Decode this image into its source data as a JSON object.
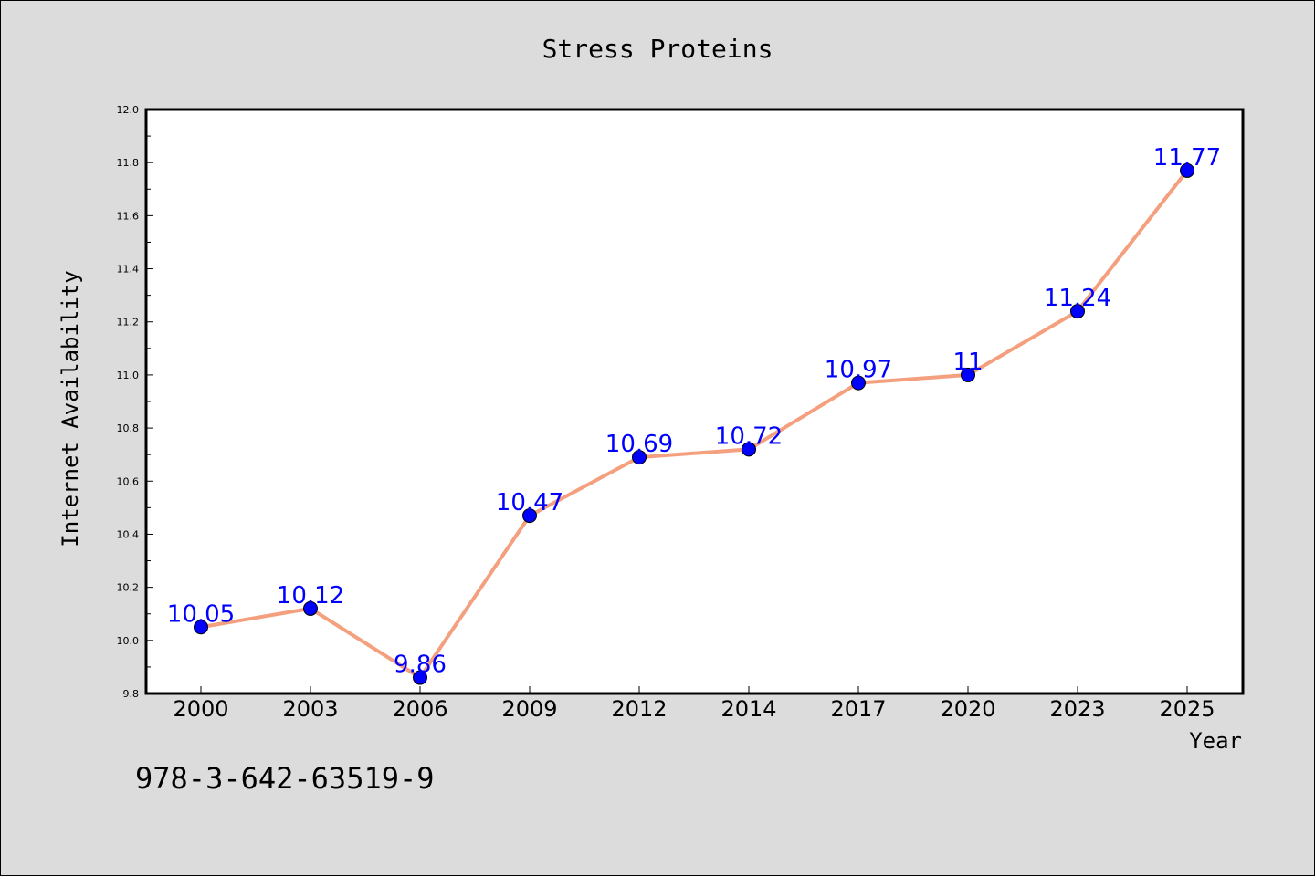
{
  "chart_data": {
    "type": "line",
    "title": "Stress Proteins",
    "xlabel": "Year",
    "ylabel": "Internet Availability",
    "categories": [
      "2000",
      "2003",
      "2006",
      "2009",
      "2012",
      "2014",
      "2017",
      "2020",
      "2023",
      "2025"
    ],
    "series": [
      {
        "values": [
          10.05,
          10.12,
          9.86,
          10.47,
          10.69,
          10.72,
          10.97,
          11.0,
          11.24,
          11.77
        ],
        "data_labels": [
          "10.05",
          "10.12",
          "9.86",
          "10.47",
          "10.69",
          "10.72",
          "10.97",
          "11",
          "11.24",
          "11.77"
        ],
        "line_color": "#f4a07f",
        "marker_color": "#0000ff",
        "label_color": "#0000ff"
      }
    ],
    "ylim": [
      9.8,
      12.0
    ],
    "yticks": [
      "9.8",
      "10.0",
      "10.2",
      "10.4",
      "10.6",
      "10.8",
      "11.0",
      "11.2",
      "11.4",
      "11.6",
      "11.8",
      "12.0"
    ],
    "grid": false,
    "legend": "none"
  },
  "footnote": "978-3-642-63519-9"
}
